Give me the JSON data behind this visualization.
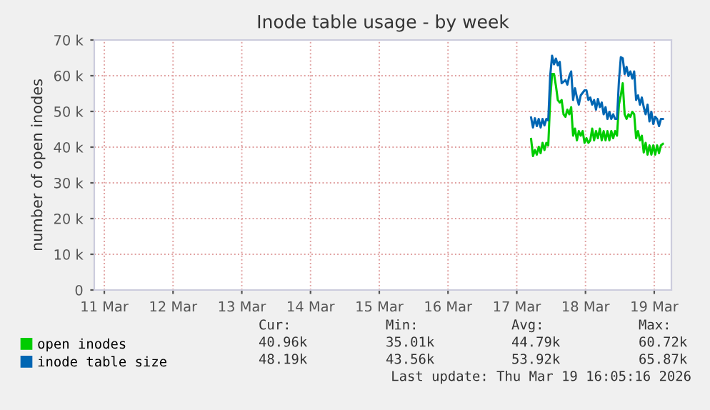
{
  "chart_data": {
    "type": "line",
    "title": "Inode table usage - by week",
    "ylabel": "number of open inodes",
    "x": [
      "2026-03-17T17:00",
      "2026-03-17T17:40",
      "2026-03-17T18:20",
      "2026-03-17T19:00",
      "2026-03-17T19:40",
      "2026-03-17T20:20",
      "2026-03-17T21:00",
      "2026-03-17T21:40",
      "2026-03-17T22:20",
      "2026-03-17T23:00",
      "2026-03-17T23:40",
      "2026-03-18T00:20",
      "2026-03-18T01:00",
      "2026-03-18T01:40",
      "2026-03-18T02:20",
      "2026-03-18T03:00",
      "2026-03-18T03:40",
      "2026-03-18T04:20",
      "2026-03-18T05:00",
      "2026-03-18T05:40",
      "2026-03-18T06:20",
      "2026-03-18T07:00",
      "2026-03-18T07:40",
      "2026-03-18T08:20",
      "2026-03-18T09:00",
      "2026-03-18T09:40",
      "2026-03-18T10:20",
      "2026-03-18T11:00",
      "2026-03-18T11:40",
      "2026-03-18T12:20",
      "2026-03-18T13:00",
      "2026-03-18T13:40",
      "2026-03-18T14:20",
      "2026-03-18T15:00",
      "2026-03-18T15:40",
      "2026-03-18T16:20",
      "2026-03-18T17:00",
      "2026-03-18T17:40",
      "2026-03-18T18:20",
      "2026-03-18T19:00",
      "2026-03-18T19:40",
      "2026-03-18T20:20",
      "2026-03-18T21:00",
      "2026-03-18T21:40",
      "2026-03-18T22:20",
      "2026-03-18T23:00",
      "2026-03-18T23:40",
      "2026-03-19T00:20",
      "2026-03-19T01:00",
      "2026-03-19T01:40",
      "2026-03-19T02:20",
      "2026-03-19T03:00",
      "2026-03-19T03:40",
      "2026-03-19T04:20",
      "2026-03-19T05:00",
      "2026-03-19T05:40",
      "2026-03-19T06:20",
      "2026-03-19T07:00",
      "2026-03-19T07:40",
      "2026-03-19T08:20",
      "2026-03-19T09:00",
      "2026-03-19T09:40",
      "2026-03-19T10:20",
      "2026-03-19T11:00",
      "2026-03-19T11:40",
      "2026-03-19T12:20",
      "2026-03-19T13:00",
      "2026-03-19T13:40",
      "2026-03-19T14:20",
      "2026-03-19T15:00"
    ],
    "series": [
      {
        "name": "open inodes",
        "color": "#00cc00",
        "values": [
          42300,
          37500,
          39200,
          37900,
          40100,
          38300,
          41200,
          39200,
          41200,
          40500,
          53200,
          60500,
          60500,
          57200,
          53200,
          52500,
          53200,
          49200,
          48500,
          50500,
          49200,
          51200,
          43200,
          45200,
          41900,
          44500,
          43200,
          44500,
          41200,
          42500,
          41200,
          41900,
          45200,
          41900,
          44500,
          42500,
          45200,
          41900,
          44500,
          41900,
          44500,
          41900,
          44500,
          42500,
          44500,
          43200,
          51900,
          54500,
          57900,
          49200,
          47900,
          49200,
          48500,
          49900,
          49200,
          42500,
          44500,
          41900,
          43200,
          38500,
          41200,
          37900,
          40500,
          37900,
          40500,
          37900,
          40500,
          38300,
          40500,
          40900
        ]
      },
      {
        "name": "inode table size",
        "color": "#0066b3",
        "values": [
          48300,
          45500,
          48100,
          45900,
          47900,
          45500,
          47900,
          46100,
          47900,
          47500,
          59900,
          65600,
          63200,
          64800,
          62900,
          63900,
          57900,
          58300,
          58800,
          57500,
          59900,
          61200,
          53200,
          56500,
          53900,
          51900,
          54500,
          55200,
          55900,
          55900,
          53200,
          53900,
          51900,
          53200,
          50500,
          53500,
          51200,
          52500,
          49200,
          51200,
          47900,
          49900,
          47900,
          49200,
          47900,
          47900,
          58500,
          65200,
          64900,
          60500,
          62500,
          59900,
          61200,
          59200,
          61200,
          53200,
          54500,
          51900,
          53900,
          51200,
          49200,
          51900,
          47200,
          49900,
          46500,
          48500,
          47900,
          45900,
          47900,
          47900
        ]
      }
    ],
    "xlim": [
      "2026-03-11T08:30",
      "2026-03-19T18:00"
    ],
    "xticks": [
      {
        "value": "2026-03-11T12:00",
        "label": "11 Mar"
      },
      {
        "value": "2026-03-12T12:00",
        "label": "12 Mar"
      },
      {
        "value": "2026-03-13T12:00",
        "label": "13 Mar"
      },
      {
        "value": "2026-03-14T12:00",
        "label": "14 Mar"
      },
      {
        "value": "2026-03-15T12:00",
        "label": "15 Mar"
      },
      {
        "value": "2026-03-16T12:00",
        "label": "16 Mar"
      },
      {
        "value": "2026-03-17T12:00",
        "label": "17 Mar"
      },
      {
        "value": "2026-03-18T12:00",
        "label": "18 Mar"
      },
      {
        "value": "2026-03-19T12:00",
        "label": "19 Mar"
      }
    ],
    "ylim": [
      0,
      70000
    ],
    "yticks": [
      0,
      {
        "value": 10000,
        "label": "10 k"
      },
      {
        "value": 20000,
        "label": "20 k"
      },
      {
        "value": 30000,
        "label": "30 k"
      },
      {
        "value": 40000,
        "label": "40 k"
      },
      {
        "value": 50000,
        "label": "50 k"
      },
      {
        "value": 60000,
        "label": "60 k"
      },
      {
        "value": 70000,
        "label": "70 k"
      }
    ],
    "grid": true,
    "legend": "bottom left",
    "annotations": [
      "Cur:",
      "Min:",
      "Avg:",
      "Max:",
      "40.96k",
      "35.01k",
      "44.79k",
      "60.72k",
      "48.19k",
      "43.56k",
      "53.92k",
      "65.87k",
      "Last update: Thu Mar 19 16:05:16 2026"
    ]
  }
}
